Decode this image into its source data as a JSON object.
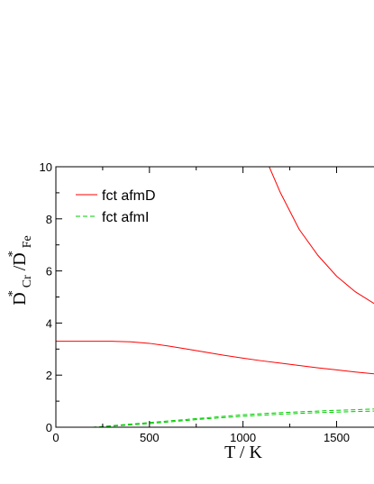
{
  "chart_data": {
    "type": "line",
    "xlabel": "T / K",
    "ylabel": {
      "main1": "D",
      "sup1": "*",
      "sub1": "Cr",
      "main2": "/D",
      "sup2": "*",
      "sub2": "Fe"
    },
    "xlim": [
      0,
      1700
    ],
    "ylim": [
      0,
      10
    ],
    "x_ticks": [
      "0",
      "500",
      "1000",
      "1500"
    ],
    "y_ticks": [
      "0",
      "2",
      "4",
      "6",
      "8",
      "10"
    ],
    "legend_position": "top-left",
    "series": [
      {
        "name": "fct afmD",
        "color": "#ff0000",
        "dash": "solid",
        "x": [
          0,
          100,
          200,
          300,
          400,
          500,
          600,
          700,
          800,
          900,
          1000,
          1100,
          1200,
          1300,
          1400,
          1500,
          1600,
          1700
        ],
        "y": [
          3.3,
          3.3,
          3.3,
          3.3,
          3.28,
          3.22,
          3.12,
          3.0,
          2.88,
          2.76,
          2.65,
          2.55,
          2.46,
          2.37,
          2.28,
          2.2,
          2.12,
          2.05
        ]
      },
      {
        "name": "",
        "color": "#ff0000",
        "dash": "solid",
        "x": [
          1140,
          1200,
          1300,
          1400,
          1500,
          1600,
          1700
        ],
        "y": [
          10.0,
          9.0,
          7.6,
          6.6,
          5.8,
          5.2,
          4.75
        ]
      },
      {
        "name": "fct afmI",
        "color": "#00cc00",
        "dash": "dashed",
        "x": [
          0,
          200,
          300,
          400,
          500,
          600,
          700,
          800,
          900,
          1000,
          1100,
          1200,
          1300,
          1400,
          1500,
          1600,
          1700
        ],
        "y": [
          0.0,
          0.0,
          0.06,
          0.12,
          0.18,
          0.24,
          0.3,
          0.36,
          0.42,
          0.48,
          0.52,
          0.56,
          0.59,
          0.62,
          0.65,
          0.67,
          0.7
        ]
      },
      {
        "name": "",
        "color": "#00cc00",
        "dash": "dashed",
        "x": [
          0,
          200,
          300,
          400,
          500,
          600,
          700,
          800,
          900,
          1000,
          1100,
          1200,
          1300,
          1400,
          1500,
          1600,
          1700
        ],
        "y": [
          0.0,
          0.0,
          0.04,
          0.09,
          0.14,
          0.2,
          0.26,
          0.32,
          0.37,
          0.42,
          0.46,
          0.5,
          0.53,
          0.56,
          0.58,
          0.6,
          0.62
        ]
      }
    ],
    "legend": [
      {
        "label": "fct afmD",
        "color": "#ff0000",
        "dash": "solid"
      },
      {
        "label": "fct afmI",
        "color": "#00cc00",
        "dash": "dashed"
      }
    ]
  }
}
